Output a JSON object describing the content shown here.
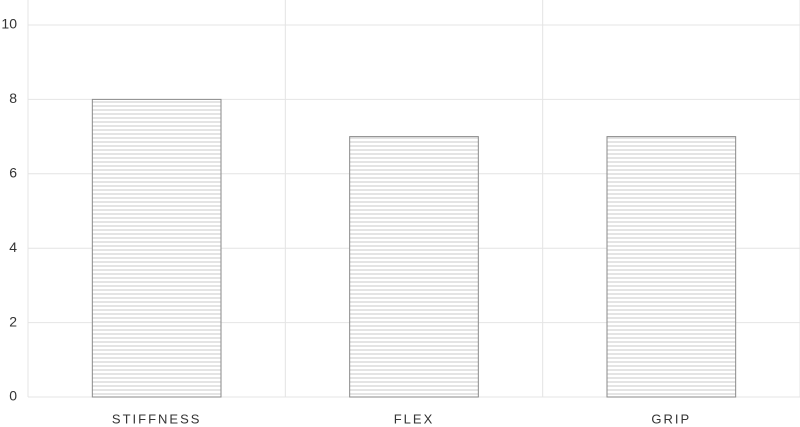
{
  "chart_data": {
    "type": "bar",
    "categories": [
      "STIFFNESS",
      "FLEX",
      "GRIP"
    ],
    "values": [
      8,
      7,
      7
    ],
    "ylim": [
      0,
      10
    ],
    "yticks": [
      0,
      2,
      4,
      6,
      8,
      10
    ],
    "grid": true
  }
}
